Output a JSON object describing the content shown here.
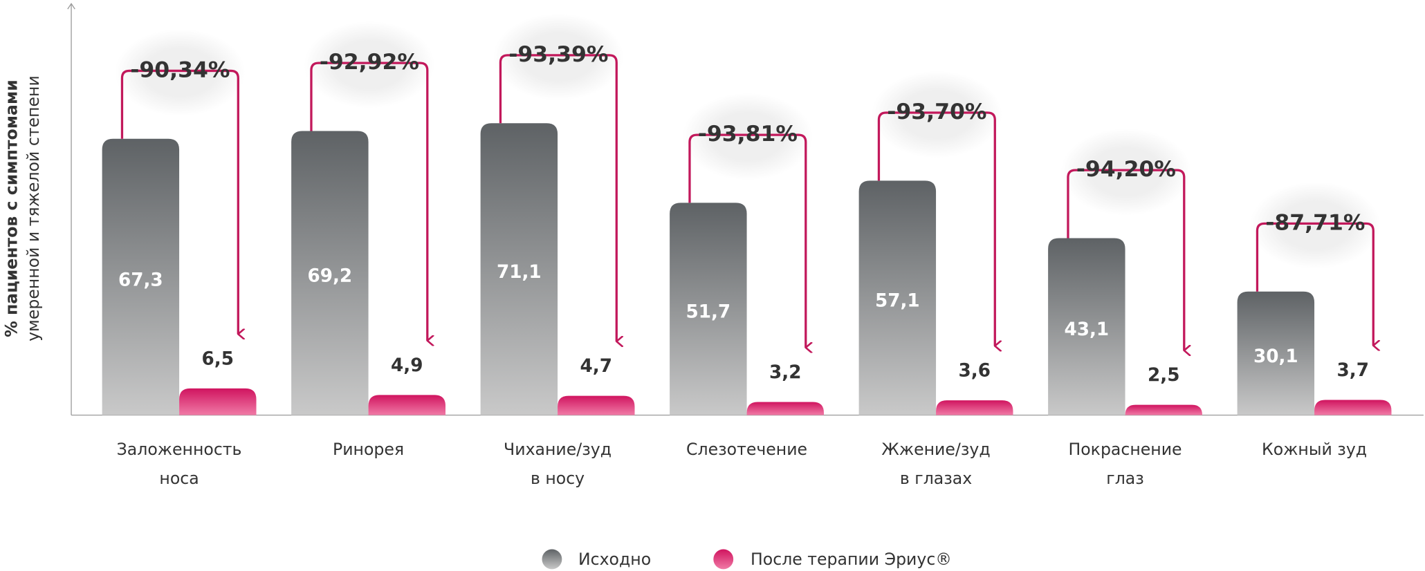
{
  "chart_data": {
    "type": "bar",
    "y_label": [
      "% пациентов с симптомами",
      "умеренной и тяжелой степени"
    ],
    "categories": [
      [
        "Заложенность",
        "носа"
      ],
      [
        "Ринорея"
      ],
      [
        "Чихание/зуд",
        "в носу"
      ],
      [
        "Слезотечение"
      ],
      [
        "Жжение/зуд",
        "в глазах"
      ],
      [
        "Покраснение",
        "глаз"
      ],
      [
        "Кожный зуд"
      ]
    ],
    "series": [
      {
        "name": "Исходно",
        "color": "#6a6e71",
        "values": [
          67.3,
          69.2,
          71.1,
          51.7,
          57.1,
          43.1,
          30.1
        ],
        "value_labels": [
          "67,3",
          "69,2",
          "71,1",
          "51,7",
          "57,1",
          "43,1",
          "30,1"
        ]
      },
      {
        "name": "После терапии Эриус®",
        "color": "#d91e6b",
        "values": [
          6.5,
          4.9,
          4.7,
          3.2,
          3.6,
          2.5,
          3.7
        ],
        "value_labels": [
          "6,5",
          "4,9",
          "4,7",
          "3,2",
          "3,6",
          "2,5",
          "3,7"
        ]
      }
    ],
    "annotations": [
      "-90,34%",
      "-92,92%",
      "-93,39%",
      "-93,81%",
      "-93,70%",
      "-94,20%",
      "-87,71%"
    ],
    "ylim": [
      0,
      100
    ]
  }
}
